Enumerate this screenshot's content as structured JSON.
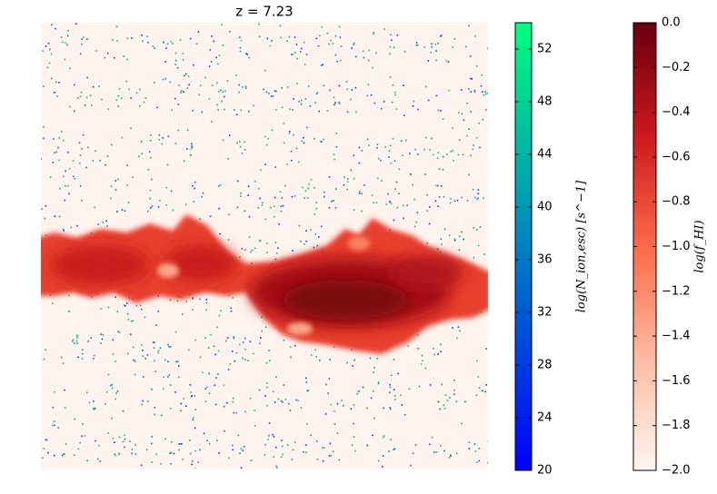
{
  "chart_data": [
    {
      "type": "image",
      "title": "z =  7.23",
      "background": "#fff3ee"
    },
    {
      "type": "colorbar",
      "label": "log(N_ion,esc) [s^−1]",
      "ylim": [
        20,
        54
      ],
      "yticks": [
        20,
        24,
        28,
        32,
        36,
        40,
        44,
        48,
        52
      ],
      "colors": [
        "#0000ff",
        "#0080bf",
        "#00ff80"
      ]
    },
    {
      "type": "colorbar",
      "label": "log(f_HI)",
      "ylim": [
        -2.0,
        0.0
      ],
      "yticks": [
        {
          "value": -2.0,
          "label": "−2.0"
        },
        {
          "value": -1.8,
          "label": "−1.8"
        },
        {
          "value": -1.6,
          "label": "−1.6"
        },
        {
          "value": -1.4,
          "label": "−1.4"
        },
        {
          "value": -1.2,
          "label": "−1.2"
        },
        {
          "value": -1.0,
          "label": "−1.0"
        },
        {
          "value": -0.8,
          "label": "−0.8"
        },
        {
          "value": -0.6,
          "label": "−0.6"
        },
        {
          "value": -0.4,
          "label": "−0.4"
        },
        {
          "value": -0.2,
          "label": "−0.2"
        },
        {
          "value": 0.0,
          "label": "0.0"
        }
      ],
      "colors": [
        "#fff5f0",
        "#fcbba1",
        "#fb6a4a",
        "#cb181d",
        "#67000d"
      ]
    }
  ]
}
